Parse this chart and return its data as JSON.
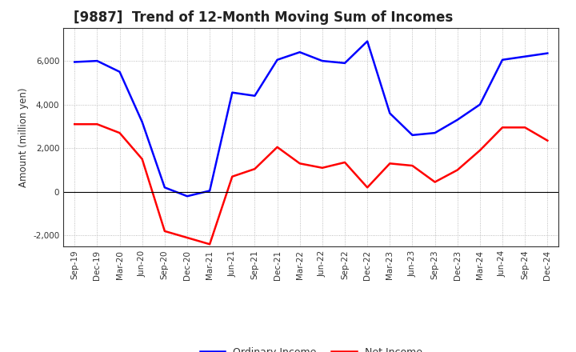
{
  "title": "[9887]  Trend of 12-Month Moving Sum of Incomes",
  "ylabel": "Amount (million yen)",
  "x_labels": [
    "Sep-19",
    "Dec-19",
    "Mar-20",
    "Jun-20",
    "Sep-20",
    "Dec-20",
    "Mar-21",
    "Jun-21",
    "Sep-21",
    "Dec-21",
    "Mar-22",
    "Jun-22",
    "Sep-22",
    "Dec-22",
    "Mar-23",
    "Jun-23",
    "Sep-23",
    "Dec-23",
    "Mar-24",
    "Jun-24",
    "Sep-24",
    "Dec-24"
  ],
  "ordinary_income": [
    5950,
    6000,
    5500,
    3200,
    200,
    -200,
    50,
    4550,
    4400,
    6050,
    6400,
    6000,
    5900,
    6900,
    3600,
    2600,
    2700,
    3300,
    4000,
    6050,
    6200,
    6350
  ],
  "net_income": [
    3100,
    3100,
    2700,
    1500,
    -1800,
    -2100,
    -2400,
    700,
    1050,
    2050,
    1300,
    1100,
    1350,
    200,
    1300,
    1200,
    450,
    1000,
    1900,
    2950,
    2950,
    2350
  ],
  "ordinary_color": "#0000FF",
  "net_color": "#FF0000",
  "ylim": [
    -2500,
    7500
  ],
  "yticks": [
    -2000,
    0,
    2000,
    4000,
    6000
  ],
  "background_color": "#FFFFFF",
  "grid_color": "#AAAAAA",
  "line_width": 1.8,
  "title_fontsize": 12,
  "title_color": "#222222",
  "tick_fontsize": 7.5,
  "ylabel_fontsize": 8.5,
  "legend_fontsize": 9,
  "legend_labels": [
    "Ordinary Income",
    "Net Income"
  ]
}
